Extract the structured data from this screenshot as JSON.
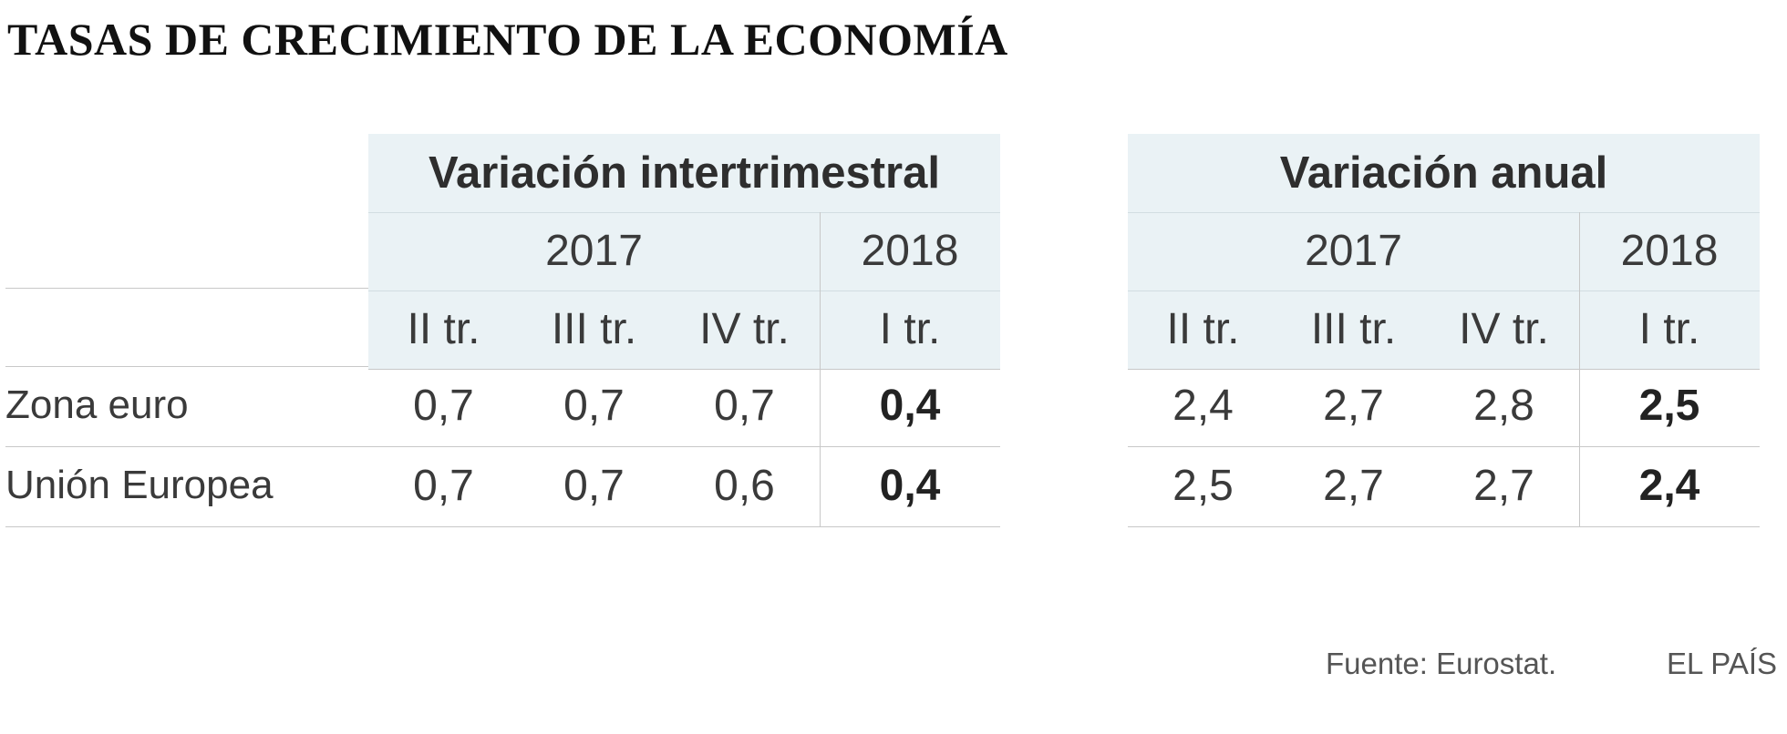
{
  "title": "TASAS DE CRECIMIENTO DE LA ECONOMÍA",
  "chart_data": {
    "type": "table",
    "row_labels": [
      "Zona euro",
      "Unión Europea"
    ],
    "tables": [
      {
        "group": "Variación intertrimestral",
        "years": [
          {
            "label": "2017",
            "span": 3
          },
          {
            "label": "2018",
            "span": 1
          }
        ],
        "columns": [
          "II tr.",
          "III tr.",
          "IV tr.",
          "I tr."
        ],
        "rows": [
          {
            "label": "Zona euro",
            "values": [
              "0,7",
              "0,7",
              "0,7",
              "0,4"
            ]
          },
          {
            "label": "Unión Europea",
            "values": [
              "0,7",
              "0,7",
              "0,6",
              "0,4"
            ]
          }
        ]
      },
      {
        "group": "Variación anual",
        "years": [
          {
            "label": "2017",
            "span": 3
          },
          {
            "label": "2018",
            "span": 1
          }
        ],
        "columns": [
          "II tr.",
          "III tr.",
          "IV tr.",
          "I tr."
        ],
        "rows": [
          {
            "label": "Zona euro",
            "values": [
              "2,4",
              "2,7",
              "2,8",
              "2,5"
            ]
          },
          {
            "label": "Unión Europea",
            "values": [
              "2,5",
              "2,7",
              "2,7",
              "2,4"
            ]
          }
        ]
      }
    ],
    "bold_column": "I tr."
  },
  "source": "Fuente: Eurostat.",
  "brand": "EL PAÍS",
  "colors": {
    "header_bg": "#eaf2f5",
    "rule": "#c8c8c8",
    "text": "#333333"
  }
}
